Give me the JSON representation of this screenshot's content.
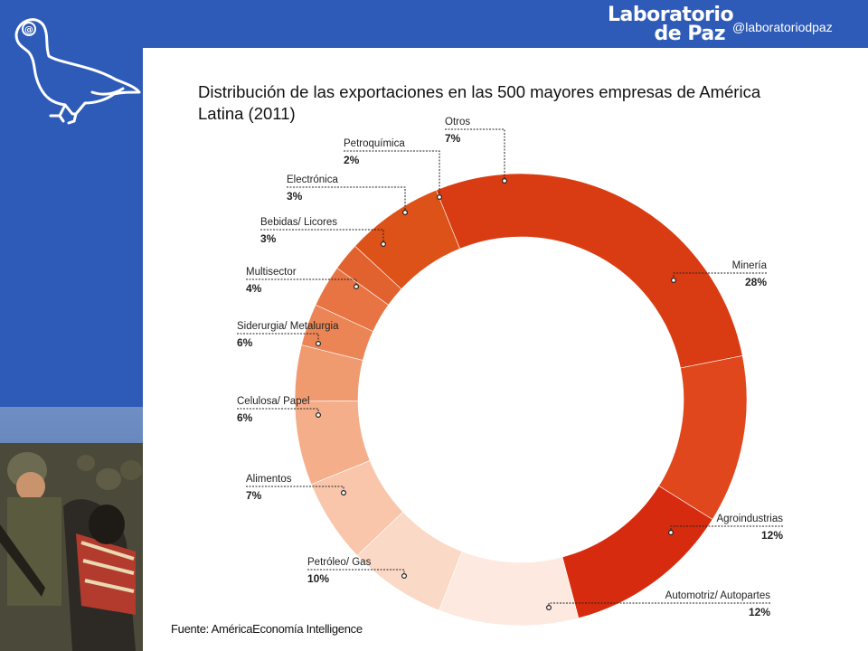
{
  "header": {
    "brand_line1": "Laboratorio",
    "brand_line2": "de Paz",
    "handle": "@laboratoriodpaz"
  },
  "colors": {
    "frame_blue": "#2e5bb8"
  },
  "icons": {
    "logo": "dove-at-icon",
    "photo": "soldiers-crowd-photo"
  },
  "title": "Distribución de las exportaciones en las 500 mayores empresas de América Latina (2011)",
  "source": "Fuente: AméricaEconomía Intelligence",
  "chart_data": {
    "type": "pie",
    "title": "Distribución de las exportaciones en las 500 mayores empresas de América Latina (2011)",
    "variant": "donut",
    "categories": [
      "Minería",
      "Agroindustrias",
      "Automotriz/ Autopartes",
      "Petróleo/ Gas",
      "Alimentos",
      "Celulosa/ Papel",
      "Siderurgia/ Metalurgia",
      "Multisector",
      "Bebidas/ Licores",
      "Electrónica",
      "Petroquímica",
      "Otros"
    ],
    "values": [
      28,
      12,
      12,
      10,
      7,
      6,
      6,
      4,
      3,
      3,
      2,
      7
    ],
    "labels": [
      "28%",
      "12%",
      "12%",
      "10%",
      "7%",
      "6%",
      "6%",
      "4%",
      "3%",
      "3%",
      "2%",
      "7%"
    ],
    "colors": [
      "#d93c12",
      "#e0471d",
      "#d62b0e",
      "#fde9df",
      "#fbd9c7",
      "#f9c6ab",
      "#f5ae8a",
      "#f09a70",
      "#ec8555",
      "#e87443",
      "#e2622f",
      "#dc5218"
    ],
    "legend": "callout labels"
  }
}
